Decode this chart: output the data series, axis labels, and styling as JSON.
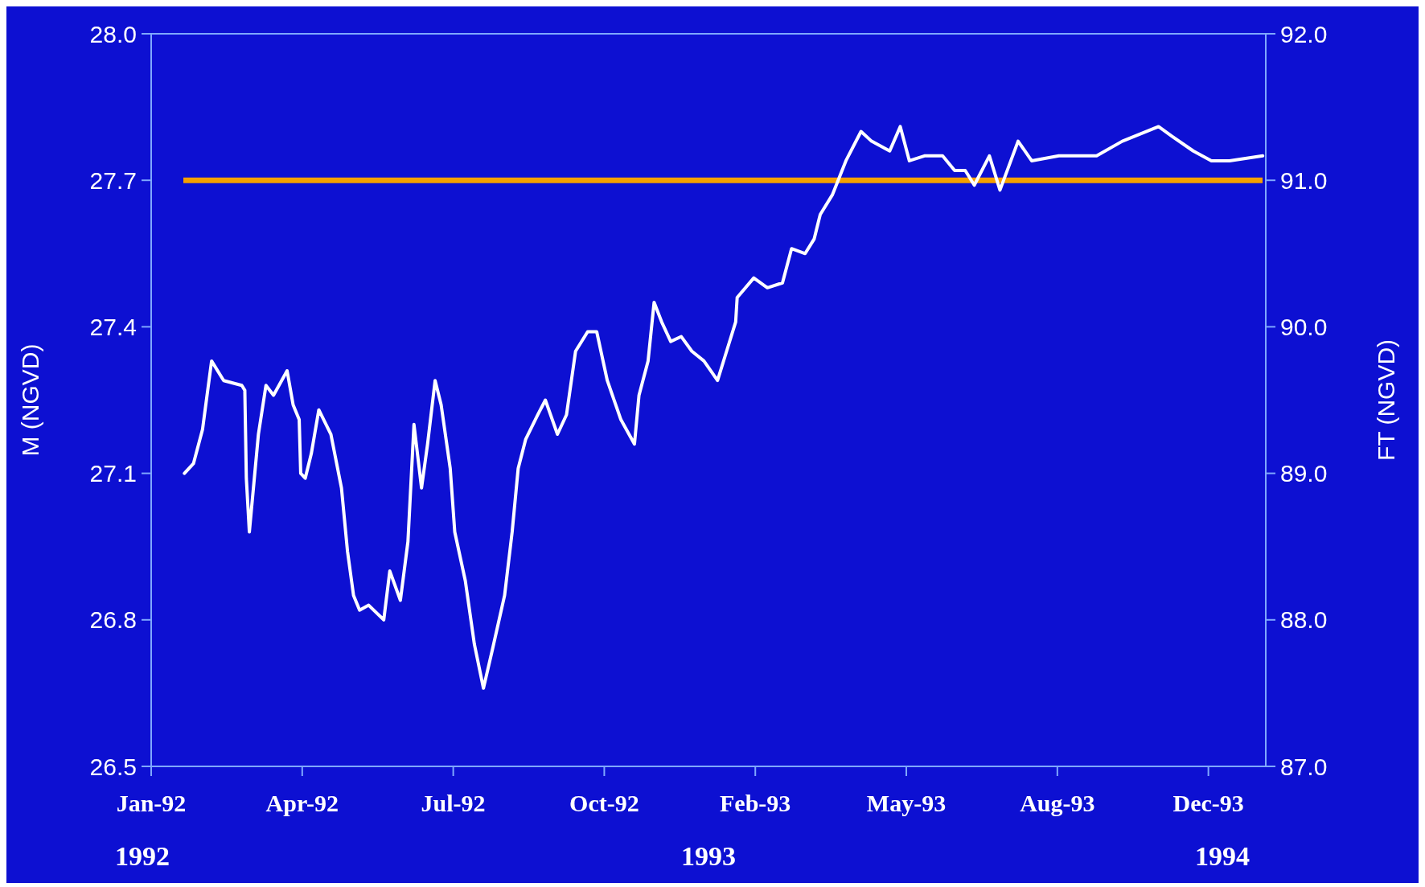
{
  "chart_data": {
    "type": "line",
    "ylabel": "M (NGVD)",
    "y2label": "FT (NGVD)",
    "xlim": [
      "1992-01-01",
      "1994-01-08"
    ],
    "xticks": [
      {
        "value": "1992-01-01",
        "label": "Jan-92"
      },
      {
        "value": "1992-04-10",
        "label": "Apr-92"
      },
      {
        "value": "1992-07-19",
        "label": "Jul-92"
      },
      {
        "value": "1992-10-27",
        "label": "Oct-92"
      },
      {
        "value": "1993-02-04",
        "label": "Feb-93"
      },
      {
        "value": "1993-05-15",
        "label": "May-93"
      },
      {
        "value": "1993-08-23",
        "label": "Aug-93"
      },
      {
        "value": "1993-12-01",
        "label": "Dec-93"
      }
    ],
    "ylim": [
      26.5,
      28.0
    ],
    "yticks": [
      {
        "value": 26.5,
        "label": "26.5"
      },
      {
        "value": 26.8,
        "label": "26.8"
      },
      {
        "value": 27.1,
        "label": "27.1"
      },
      {
        "value": 27.4,
        "label": "27.4"
      },
      {
        "value": 27.7,
        "label": "27.7"
      },
      {
        "value": 28.0,
        "label": "28.0"
      }
    ],
    "y2lim": [
      87.0,
      92.0
    ],
    "y2ticks": [
      {
        "value": 87,
        "label": "87.0"
      },
      {
        "value": 88,
        "label": "88.0"
      },
      {
        "value": 89,
        "label": "89.0"
      },
      {
        "value": 90,
        "label": "90.0"
      },
      {
        "value": 91,
        "label": "91.0"
      },
      {
        "value": 92,
        "label": "92.0"
      }
    ],
    "series": [
      {
        "color": "#ffffff",
        "x": [
          "1992-01-23",
          "1992-01-29",
          "1992-02-04",
          "1992-02-10",
          "1992-02-18",
          "1992-03-01",
          "1992-03-03",
          "1992-03-04",
          "1992-03-06",
          "1992-03-12",
          "1992-03-17",
          "1992-03-22",
          "1992-03-31",
          "1992-04-04",
          "1992-04-08",
          "1992-04-09",
          "1992-04-12",
          "1992-04-16",
          "1992-04-21",
          "1992-04-29",
          "1992-05-06",
          "1992-05-10",
          "1992-05-14",
          "1992-05-18",
          "1992-05-24",
          "1992-06-03",
          "1992-06-07",
          "1992-06-14",
          "1992-06-19",
          "1992-06-23",
          "1992-06-28",
          "1992-07-02",
          "1992-07-07",
          "1992-07-11",
          "1992-07-17",
          "1992-07-20",
          "1992-07-27",
          "1992-08-02",
          "1992-08-08",
          "1992-08-14",
          "1992-08-22",
          "1992-08-27",
          "1992-08-31",
          "1992-09-05",
          "1992-09-13",
          "1992-09-18",
          "1992-09-26",
          "1992-10-02",
          "1992-10-08",
          "1992-10-16",
          "1992-10-22",
          "1992-10-29",
          "1992-11-07",
          "1992-11-16",
          "1992-11-19",
          "1992-11-25",
          "1992-11-29",
          "1992-12-04",
          "1992-12-10",
          "1992-12-17",
          "1992-12-24",
          "1993-01-01",
          "1993-01-10",
          "1993-01-16",
          "1993-01-22",
          "1993-01-23",
          "1993-02-03",
          "1993-02-12",
          "1993-02-22",
          "1993-02-28",
          "1993-03-09",
          "1993-03-15",
          "1993-03-19",
          "1993-03-27",
          "1993-04-05",
          "1993-04-15",
          "1993-04-22",
          "1993-05-04",
          "1993-05-11",
          "1993-05-17",
          "1993-05-27",
          "1993-06-08",
          "1993-06-16",
          "1993-06-23",
          "1993-06-29",
          "1993-07-09",
          "1993-07-16",
          "1993-07-28",
          "1993-08-06",
          "1993-08-24",
          "1993-09-18",
          "1993-10-05",
          "1993-10-29",
          "1993-11-07",
          "1993-11-21",
          "1993-12-03",
          "1993-12-15",
          "1994-01-06"
        ],
        "values": [
          27.1,
          27.12,
          27.19,
          27.33,
          27.29,
          27.28,
          27.27,
          27.09,
          26.98,
          27.18,
          27.28,
          27.26,
          27.31,
          27.24,
          27.21,
          27.1,
          27.09,
          27.14,
          27.23,
          27.18,
          27.07,
          26.94,
          26.85,
          26.82,
          26.83,
          26.8,
          26.9,
          26.84,
          26.96,
          27.2,
          27.07,
          27.16,
          27.29,
          27.24,
          27.11,
          26.98,
          26.88,
          26.75,
          26.66,
          26.74,
          26.85,
          26.98,
          27.11,
          27.17,
          27.22,
          27.25,
          27.18,
          27.22,
          27.35,
          27.39,
          27.39,
          27.29,
          27.21,
          27.16,
          27.26,
          27.33,
          27.45,
          27.41,
          27.37,
          27.38,
          27.35,
          27.33,
          27.29,
          27.35,
          27.41,
          27.46,
          27.5,
          27.48,
          27.49,
          27.56,
          27.55,
          27.58,
          27.63,
          27.67,
          27.74,
          27.8,
          27.78,
          27.76,
          27.81,
          27.74,
          27.75,
          27.75,
          27.72,
          27.72,
          27.69,
          27.75,
          27.68,
          27.78,
          27.74,
          27.75,
          27.75,
          27.78,
          27.81,
          27.79,
          27.76,
          27.74,
          27.74,
          27.75
        ]
      }
    ],
    "ref_lines": [
      {
        "axis": "y",
        "value": 27.7,
        "color": "#f5a000"
      }
    ],
    "annotations": [
      "1992",
      "1993",
      "1994"
    ],
    "grid": false,
    "line_style": "solid"
  }
}
